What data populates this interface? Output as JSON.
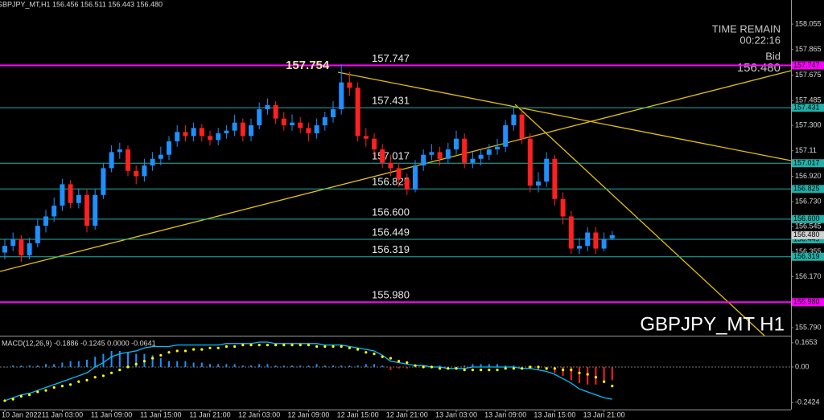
{
  "chart_data": {
    "type": "candlestick",
    "title": "GBPJPY_MT,H1 156.456 156.511 156.443 156.480",
    "watermark": "GBPJPY_MT H1",
    "timer_label": "TIME REMAIN",
    "timer": "00:22:16",
    "bid_label": "Bid",
    "bid": {
      "value": 156.48,
      "label": "156.480"
    },
    "high_annotation": {
      "value": 157.754,
      "label": "157.754"
    },
    "up_color": "#1e90ff",
    "down_color": "#ff2020",
    "open": [
      156.35,
      156.4,
      156.45,
      156.33,
      156.42,
      156.55,
      156.62,
      156.7,
      156.86,
      156.72,
      156.78,
      156.55,
      156.78,
      156.98,
      157.1,
      157.12,
      156.96,
      156.92,
      157.0,
      157.05,
      157.08,
      157.18,
      157.25,
      157.22,
      157.28,
      157.22,
      157.19,
      157.24,
      157.26,
      157.32,
      157.22,
      157.3,
      157.42,
      157.45,
      157.35,
      157.3,
      157.32,
      157.28,
      157.24,
      157.3,
      157.36,
      157.42,
      157.62,
      157.58,
      157.22,
      157.2,
      157.12,
      157.02,
      156.98,
      156.9,
      156.82,
      157.0,
      157.08,
      157.1,
      157.05,
      157.12,
      157.2,
      157.02,
      157.05,
      157.08,
      157.12,
      157.14,
      157.3,
      157.38,
      157.2,
      156.85,
      156.88,
      157.05,
      156.75,
      156.62,
      156.38,
      156.4,
      156.5,
      156.38,
      156.456
    ],
    "high": [
      156.45,
      156.5,
      156.48,
      156.46,
      156.6,
      156.67,
      156.76,
      156.9,
      156.89,
      156.83,
      156.82,
      156.82,
      157.02,
      157.15,
      157.17,
      157.15,
      157.0,
      157.05,
      157.1,
      157.14,
      157.22,
      157.3,
      157.3,
      157.32,
      157.31,
      157.26,
      157.28,
      157.3,
      157.38,
      157.35,
      157.35,
      157.47,
      157.5,
      157.48,
      157.4,
      157.38,
      157.36,
      157.32,
      157.35,
      157.4,
      157.48,
      157.754,
      157.7,
      157.62,
      157.28,
      157.24,
      157.16,
      157.08,
      157.02,
      156.94,
      157.04,
      157.12,
      157.16,
      157.14,
      157.17,
      157.26,
      157.24,
      157.1,
      157.12,
      157.16,
      157.2,
      157.34,
      157.44,
      157.42,
      157.24,
      156.95,
      157.1,
      157.08,
      156.8,
      156.66,
      156.46,
      156.54,
      156.54,
      156.5,
      156.511
    ],
    "low": [
      156.3,
      156.36,
      156.28,
      156.3,
      156.39,
      156.5,
      156.58,
      156.66,
      156.68,
      156.68,
      156.5,
      156.52,
      156.75,
      156.95,
      157.05,
      156.92,
      156.86,
      156.88,
      156.96,
      157.0,
      157.04,
      157.14,
      157.18,
      157.18,
      157.18,
      157.15,
      157.15,
      157.2,
      157.22,
      157.18,
      157.18,
      157.27,
      157.38,
      157.31,
      157.26,
      157.26,
      157.24,
      157.18,
      157.2,
      157.26,
      157.32,
      157.38,
      157.52,
      157.18,
      157.14,
      157.06,
      156.98,
      156.92,
      156.84,
      156.78,
      156.8,
      156.96,
      157.04,
      157.0,
      157.02,
      157.08,
      156.98,
      156.98,
      157.0,
      157.04,
      157.08,
      157.1,
      157.26,
      157.16,
      156.8,
      156.8,
      156.84,
      156.7,
      156.56,
      156.34,
      156.34,
      156.36,
      156.34,
      156.36,
      156.443
    ],
    "close": [
      156.4,
      156.45,
      156.33,
      156.42,
      156.55,
      156.62,
      156.7,
      156.86,
      156.72,
      156.78,
      156.55,
      156.78,
      156.98,
      157.1,
      157.12,
      156.96,
      156.92,
      157.0,
      157.05,
      157.08,
      157.18,
      157.25,
      157.22,
      157.28,
      157.22,
      157.19,
      157.24,
      157.26,
      157.32,
      157.22,
      157.3,
      157.42,
      157.45,
      157.35,
      157.3,
      157.32,
      157.28,
      157.24,
      157.3,
      157.36,
      157.42,
      157.62,
      157.58,
      157.22,
      157.2,
      157.12,
      157.02,
      156.98,
      156.9,
      156.82,
      157.0,
      157.08,
      157.1,
      157.05,
      157.12,
      157.2,
      157.02,
      157.05,
      157.08,
      157.12,
      157.14,
      157.3,
      157.38,
      157.2,
      156.85,
      156.88,
      157.05,
      156.75,
      156.62,
      156.38,
      156.4,
      156.5,
      156.38,
      156.45,
      156.48
    ],
    "ylim": [
      155.73,
      158.235
    ],
    "yticks": [
      158.055,
      157.865,
      157.675,
      157.485,
      {
        "value": 157.3,
        "label": "157.300"
      },
      157.11,
      {
        "value": 156.92,
        "label": "156.920"
      },
      {
        "value": 156.73,
        "label": "156.730"
      },
      156.545,
      156.355,
      {
        "value": 156.17,
        "label": "156.170"
      },
      {
        "value": 155.79,
        "label": "155.790"
      }
    ],
    "x_labels": [
      "10 Jan 2022",
      "11 Jan 03:00",
      "11 Jan 09:00",
      "11 Jan 15:00",
      "11 Jan 21:00",
      "12 Jan 03:00",
      "12 Jan 09:00",
      "12 Jan 15:00",
      "12 Jan 21:00",
      "13 Jan 03:00",
      "13 Jan 09:00",
      "13 Jan 15:00",
      "13 Jan 21:00"
    ],
    "levels": [
      {
        "value": 157.747,
        "label": "157.747",
        "color": "#ff00ff"
      },
      {
        "value": 157.431,
        "label": "157.431",
        "color": "#20b2aa"
      },
      {
        "value": 157.017,
        "label": "157.017",
        "color": "#20b2aa"
      },
      {
        "value": 156.825,
        "label": "156.825",
        "color": "#20b2aa"
      },
      {
        "value": 156.6,
        "label": "156.600",
        "color": "#20b2aa"
      },
      {
        "value": 156.449,
        "label": "156.449",
        "color": "#20b2aa"
      },
      {
        "value": 156.319,
        "label": "156.319",
        "color": "#20b2aa"
      },
      {
        "value": 155.98,
        "label": "155.980",
        "color": "#ff00ff"
      }
    ],
    "macd": {
      "title": "MACD(12,26,9) -0.1886 -0.1245 0.0000 -0.0641",
      "ylim": [
        -0.2907,
        0.1975
      ],
      "yticks": [
        0.1653,
        {
          "value": 0,
          "label": "0.00"
        },
        -0.2424
      ],
      "histogram": {
        "up_color": "#1e90ff",
        "down_color": "#ff2020",
        "values": [
          0,
          0.01,
          0.01,
          0.01,
          0.01,
          0.02,
          0.02,
          0.03,
          0.04,
          0.04,
          0.05,
          0.07,
          0.09,
          0.11,
          0.11,
          0.1,
          0.09,
          0.09,
          0.08,
          0.06,
          0.04,
          0.04,
          0.04,
          0.03,
          0.03,
          0.02,
          0.02,
          0.02,
          0.02,
          0.01,
          0.01,
          0.02,
          0.02,
          0.01,
          0.01,
          0.01,
          0.01,
          0.01,
          0.02,
          0.01,
          0.01,
          0.01,
          0.01,
          0.01,
          0.02,
          0.02,
          0.01,
          -0.02,
          -0.01,
          -0.01,
          0,
          0.01,
          0,
          0.01,
          0,
          0,
          0.01,
          0.02,
          0.02,
          0.02,
          0.02,
          0.01,
          0.01,
          0,
          -0.01,
          -0.02,
          -0.02,
          -0.04,
          -0.06,
          -0.09,
          -0.11,
          -0.12,
          -0.12,
          -0.11,
          -0.09
        ]
      },
      "macd_line": {
        "color": "#00bfff",
        "values": [
          -0.23,
          -0.21,
          -0.19,
          -0.18,
          -0.16,
          -0.14,
          -0.12,
          -0.1,
          -0.08,
          -0.06,
          -0.04,
          0,
          0.03,
          0.07,
          0.09,
          0.1,
          0.11,
          0.13,
          0.14,
          0.14,
          0.14,
          0.15,
          0.15,
          0.15,
          0.15,
          0.15,
          0.15,
          0.16,
          0.16,
          0.16,
          0.16,
          0.17,
          0.17,
          0.16,
          0.16,
          0.16,
          0.16,
          0.16,
          0.16,
          0.15,
          0.15,
          0.15,
          0.14,
          0.13,
          0.12,
          0.11,
          0.08,
          0.04,
          0.03,
          0.02,
          0.01,
          0.01,
          0,
          0,
          -0.01,
          -0.01,
          -0.01,
          0,
          0,
          0,
          0,
          0,
          0,
          -0.01,
          -0.01,
          -0.02,
          -0.03,
          -0.05,
          -0.08,
          -0.11,
          -0.15,
          -0.17,
          -0.19,
          -0.21,
          -0.22
        ]
      },
      "signal": {
        "color": "#ffff00",
        "values": [
          -0.23,
          -0.22,
          -0.2,
          -0.19,
          -0.17,
          -0.16,
          -0.14,
          -0.13,
          -0.12,
          -0.1,
          -0.09,
          -0.07,
          -0.06,
          -0.04,
          -0.02,
          0,
          0.02,
          0.04,
          0.06,
          0.08,
          0.1,
          0.11,
          0.11,
          0.12,
          0.12,
          0.13,
          0.13,
          0.14,
          0.14,
          0.15,
          0.15,
          0.15,
          0.15,
          0.15,
          0.15,
          0.15,
          0.15,
          0.15,
          0.14,
          0.14,
          0.14,
          0.14,
          0.13,
          0.12,
          0.1,
          0.09,
          0.07,
          0.06,
          0.04,
          0.03,
          0.01,
          0,
          0,
          -0.01,
          -0.01,
          -0.01,
          -0.02,
          -0.02,
          -0.02,
          -0.02,
          -0.02,
          -0.01,
          -0.01,
          -0.01,
          0,
          0,
          -0.01,
          -0.01,
          -0.02,
          -0.02,
          -0.04,
          -0.05,
          -0.07,
          -0.1,
          -0.13
        ]
      }
    }
  }
}
